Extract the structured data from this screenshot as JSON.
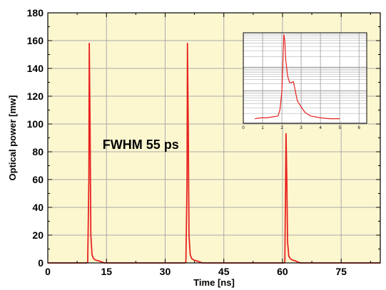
{
  "chart_data": [
    {
      "type": "line",
      "xlabel": "Time [ns]",
      "ylabel": "Optical power [mw]",
      "xlim": [
        0,
        85
      ],
      "ylim": [
        0,
        180
      ],
      "xticks": [
        0,
        15,
        30,
        45,
        60,
        75
      ],
      "yticks": [
        20,
        40,
        60,
        80,
        100,
        120,
        140,
        160,
        180
      ],
      "grid": true,
      "background_color": "#fdf7d0",
      "line_color": "#e8231f",
      "annotations": [
        {
          "text": "FWHM 55 ps",
          "x": 14,
          "y": 82
        }
      ],
      "series": [
        {
          "x": [
            0,
            9.9,
            10.2,
            10.5,
            10.6,
            10.8,
            11.0,
            11.3,
            11.7,
            12.3,
            13.0,
            14.0,
            14.5,
            35.0,
            35.3,
            35.6,
            35.7,
            35.9,
            36.1,
            36.4,
            36.8,
            37.4,
            38.1,
            39.0,
            39.5,
            60.4,
            60.6,
            60.8,
            60.9,
            61.1,
            61.3,
            61.6,
            62.0,
            62.6,
            63.3,
            64.0,
            64.5,
            85
          ],
          "y": [
            0,
            0,
            0.5,
            60,
            158,
            100,
            20,
            6,
            3,
            2,
            1.5,
            0.5,
            0,
            0,
            0.5,
            60,
            158,
            100,
            20,
            6,
            3,
            2,
            1.5,
            0.5,
            0,
            0,
            0.5,
            60,
            93,
            60,
            15,
            5,
            3,
            2,
            1.5,
            0.5,
            0,
            0
          ]
        }
      ]
    },
    {
      "type": "line",
      "inset": true,
      "xlim": [
        0,
        6.4
      ],
      "ylim": [
        0,
        1
      ],
      "xticks": [
        0,
        1,
        2,
        3,
        4,
        5,
        6
      ],
      "grid": true,
      "background_color": "#ffffff",
      "line_color": "#e8231f",
      "series": [
        {
          "x": [
            0.6,
            0.9,
            1.2,
            1.5,
            1.8,
            1.9,
            2.0,
            2.05,
            2.1,
            2.15,
            2.2,
            2.3,
            2.4,
            2.5,
            2.6,
            2.7,
            2.8,
            3.0,
            3.2,
            3.5,
            4.0,
            4.5,
            5.0
          ],
          "y": [
            0.05,
            0.06,
            0.06,
            0.07,
            0.08,
            0.15,
            0.35,
            0.65,
            0.98,
            0.92,
            0.7,
            0.52,
            0.45,
            0.45,
            0.46,
            0.35,
            0.25,
            0.18,
            0.12,
            0.08,
            0.06,
            0.05,
            0.05
          ]
        }
      ]
    }
  ]
}
